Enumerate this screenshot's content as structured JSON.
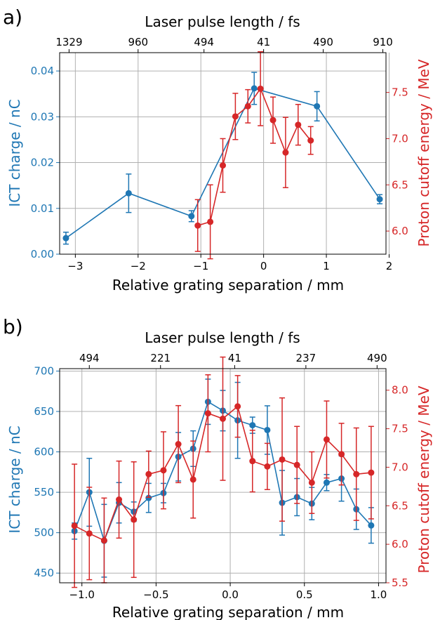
{
  "colors": {
    "left": "#1f77b4",
    "right": "#d62728",
    "grid": "#b0b0b0",
    "axis": "#000000"
  },
  "chart_data": [
    {
      "panel_label": "a)",
      "type": "line",
      "xlabel": "Relative grating separation / mm",
      "top_xlabel": "Laser pulse length / fs",
      "ylabel_left": "ICT charge / nC",
      "ylabel_right": "Proton cutoff energy / MeV",
      "xlim": [
        -3.25,
        1.95
      ],
      "ylim_left": [
        0,
        0.044
      ],
      "ylim_right": [
        5.75,
        7.93
      ],
      "xticks": [
        -3,
        -2,
        -1,
        0,
        1,
        2
      ],
      "yticks_left": [
        0.0,
        0.01,
        0.02,
        0.03,
        0.04
      ],
      "yticks_left_labels": [
        "0.00",
        "0.01",
        "0.02",
        "0.03",
        "0.04"
      ],
      "yticks_right": [
        6.0,
        6.5,
        7.0,
        7.5
      ],
      "yticks_right_labels": [
        "6.0",
        "6.5",
        "7.0",
        "7.5"
      ],
      "top_ticks": [
        {
          "x": -3.1,
          "label": "1329"
        },
        {
          "x": -2.0,
          "label": "960"
        },
        {
          "x": -0.95,
          "label": "494"
        },
        {
          "x": 0.0,
          "label": "41"
        },
        {
          "x": 0.95,
          "label": "490"
        },
        {
          "x": 1.9,
          "label": "910"
        }
      ],
      "grid": true,
      "series": [
        {
          "axis": "left",
          "x": [
            -3.15,
            -2.15,
            -1.15,
            -0.15,
            0.85,
            1.85
          ],
          "y": [
            0.0035,
            0.0133,
            0.0083,
            0.0362,
            0.0323,
            0.012
          ],
          "err": [
            0.0013,
            0.0042,
            0.0012,
            0.0035,
            0.0032,
            0.001
          ]
        },
        {
          "axis": "right",
          "x": [
            -1.05,
            -0.85,
            -0.65,
            -0.45,
            -0.25,
            -0.05,
            0.15,
            0.35,
            0.55,
            0.75
          ],
          "y": [
            6.06,
            6.1,
            6.71,
            7.24,
            7.35,
            7.54,
            7.2,
            6.85,
            7.15,
            6.98
          ],
          "err": [
            0.28,
            0.4,
            0.29,
            0.25,
            0.18,
            0.4,
            0.25,
            0.38,
            0.22,
            0.15
          ]
        }
      ]
    },
    {
      "panel_label": "b)",
      "type": "line",
      "xlabel": "Relative grating separation / mm",
      "top_xlabel": "Laser pulse length / fs",
      "ylabel_left": "ICT charge / nC",
      "ylabel_right": "Proton cutoff energy / MeV",
      "xlim": [
        -1.15,
        1.05
      ],
      "ylim_left": [
        438,
        703
      ],
      "ylim_right": [
        5.5,
        8.28
      ],
      "xticks": [
        -1.0,
        -0.5,
        0.0,
        0.5,
        1.0
      ],
      "xticks_labels": [
        "−1.0",
        "−0.5",
        "0.0",
        "0.5",
        "1.0"
      ],
      "yticks_left": [
        450,
        500,
        550,
        600,
        650,
        700
      ],
      "yticks_right": [
        5.5,
        6.0,
        6.5,
        7.0,
        7.5,
        8.0
      ],
      "yticks_right_labels": [
        "5.5",
        "6.0",
        "6.5",
        "7.0",
        "7.5",
        "8.0"
      ],
      "top_ticks": [
        {
          "x": -0.95,
          "label": "494"
        },
        {
          "x": -0.47,
          "label": "221"
        },
        {
          "x": 0.03,
          "label": "41"
        },
        {
          "x": 0.51,
          "label": "237"
        },
        {
          "x": 0.99,
          "label": "490"
        }
      ],
      "grid": true,
      "series": [
        {
          "axis": "left",
          "x": [
            -1.05,
            -0.95,
            -0.85,
            -0.75,
            -0.65,
            -0.55,
            -0.45,
            -0.35,
            -0.25,
            -0.15,
            -0.05,
            0.05,
            0.15,
            0.25,
            0.35,
            0.45,
            0.55,
            0.65,
            0.75,
            0.85,
            0.95
          ],
          "y": [
            502,
            550,
            490,
            537,
            526,
            543,
            549,
            594,
            604,
            662,
            651,
            639,
            633,
            627,
            537,
            544,
            536,
            562,
            567,
            529,
            509
          ],
          "err": [
            10,
            42,
            45,
            25,
            12,
            18,
            12,
            30,
            22,
            28,
            25,
            47,
            10,
            30,
            40,
            23,
            20,
            10,
            28,
            25,
            22
          ]
        },
        {
          "axis": "right",
          "x": [
            -1.05,
            -0.95,
            -0.85,
            -0.75,
            -0.65,
            -0.55,
            -0.45,
            -0.35,
            -0.25,
            -0.15,
            -0.05,
            0.05,
            0.15,
            0.25,
            0.35,
            0.45,
            0.55,
            0.65,
            0.75,
            0.85,
            0.95
          ],
          "y": [
            6.24,
            6.14,
            6.05,
            6.58,
            6.32,
            6.91,
            6.96,
            7.3,
            6.84,
            7.7,
            7.63,
            7.79,
            7.08,
            7.01,
            7.1,
            7.03,
            6.8,
            7.36,
            7.17,
            6.91,
            6.93
          ],
          "err": [
            0.8,
            0.6,
            0.55,
            0.5,
            0.75,
            0.3,
            0.5,
            0.5,
            0.5,
            0.5,
            0.8,
            0.4,
            0.4,
            0.3,
            0.8,
            0.5,
            0.4,
            0.5,
            0.4,
            0.6,
            0.6
          ]
        }
      ]
    }
  ]
}
